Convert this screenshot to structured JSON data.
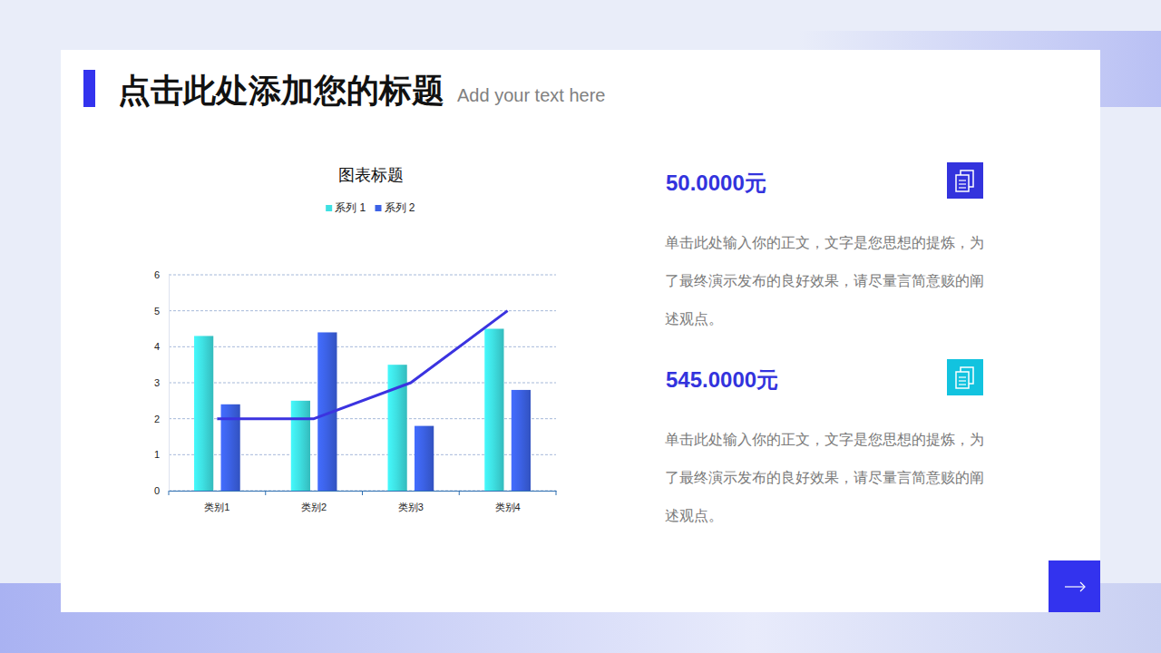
{
  "slide": {
    "title": "点击此处添加您的标题",
    "subtitle": "Add your text here",
    "items": [
      {
        "value": "50.0000元",
        "text": "单击此处输入你的正文，文字是您思想的提炼，为了最终演示发布的良好效果，请尽量言简意赅的阐述观点。"
      },
      {
        "value": "545.0000元",
        "text": "单击此处输入你的正文，文字是您思想的提炼，为了最终演示发布的良好效果，请尽量言简意赅的阐述观点。"
      }
    ]
  },
  "chart_data": {
    "type": "bar",
    "title": "图表标题",
    "categories": [
      "类别1",
      "类别2",
      "类别3",
      "类别4"
    ],
    "series": [
      {
        "name": "系列 1",
        "color": "#3ee0e2",
        "values": [
          4.3,
          2.5,
          3.5,
          4.5
        ]
      },
      {
        "name": "系列 2",
        "color": "#3c62e6",
        "values": [
          2.4,
          4.4,
          1.8,
          2.8
        ]
      },
      {
        "type": "line",
        "color": "#3b33e0",
        "values": [
          2,
          2,
          3,
          5
        ]
      }
    ],
    "ylim": [
      0,
      6
    ],
    "yticks": [
      0,
      1,
      2,
      3,
      4,
      5,
      6
    ],
    "grid": true,
    "legend": "top"
  }
}
